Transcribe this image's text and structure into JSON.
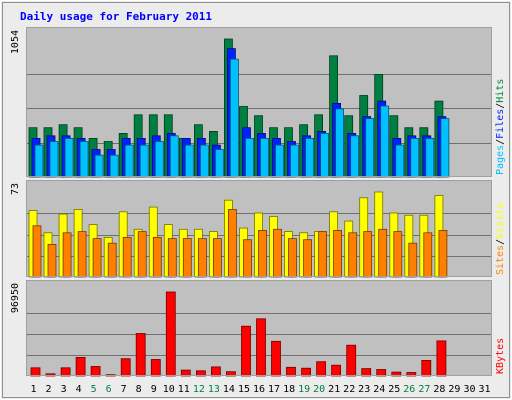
{
  "title": "Daily usage for February 2011",
  "colors": {
    "background": "#ececec",
    "panel": "#c0c0c0",
    "frame": "#a0a0a0",
    "gridline": "#707070",
    "title": "#0000ff",
    "pages": "#00c0ff",
    "files": "#0020ff",
    "hits": "#008040",
    "visits": "#ffff00",
    "sites": "#ff8000",
    "kbytes": "#ff0000",
    "weekday_label": "#000000",
    "weekend_label": "#008040"
  },
  "chart_data": [
    {
      "type": "bar",
      "name": "hits-files-pages",
      "ymax": 1054,
      "ymax_label": "1054",
      "scale": "log",
      "legend": [
        {
          "label": "Pages",
          "color": "#00c0ff"
        },
        {
          "label": "Files",
          "color": "#0020ff"
        },
        {
          "label": "Hits",
          "color": "#008040"
        }
      ],
      "series": [
        {
          "name": "Hits",
          "values": [
            11,
            11,
            13,
            11,
            6,
            5,
            8,
            22,
            22,
            22,
            6,
            13,
            9,
            1054,
            34,
            21,
            11,
            11,
            13,
            22,
            450,
            21,
            60,
            175,
            21,
            11,
            11,
            45,
            0,
            0,
            0
          ]
        },
        {
          "name": "Files",
          "values": [
            6,
            7,
            7,
            6,
            3,
            3,
            6,
            6,
            7,
            8,
            6,
            6,
            4,
            650,
            11,
            8,
            6,
            5,
            7,
            9,
            40,
            8,
            20,
            45,
            6,
            7,
            7,
            20,
            0,
            0,
            0
          ]
        },
        {
          "name": "Pages",
          "values": [
            4,
            5,
            6,
            5,
            2,
            2,
            4,
            4,
            5,
            7,
            4,
            4,
            3,
            380,
            6,
            6,
            4,
            4,
            6,
            8,
            30,
            7,
            18,
            35,
            4,
            6,
            6,
            18,
            0,
            0,
            0
          ]
        }
      ]
    },
    {
      "type": "bar",
      "name": "visits-sites",
      "ymax": 73,
      "ymax_label": "73",
      "legend": [
        {
          "label": "Sites",
          "color": "#ff8000"
        },
        {
          "label": "Visits",
          "color": "#ffff00"
        }
      ],
      "series": [
        {
          "name": "Visits",
          "values": [
            57,
            38,
            54,
            58,
            45,
            34,
            56,
            41,
            60,
            45,
            41,
            41,
            39,
            66,
            42,
            55,
            52,
            39,
            38,
            39,
            56,
            48,
            68,
            73,
            55,
            53,
            53,
            70,
            0,
            0,
            0
          ]
        },
        {
          "name": "Sites",
          "values": [
            44,
            28,
            38,
            39,
            33,
            29,
            34,
            39,
            34,
            33,
            33,
            33,
            33,
            58,
            32,
            40,
            41,
            33,
            32,
            39,
            40,
            38,
            39,
            41,
            39,
            29,
            38,
            40,
            0,
            0,
            0
          ]
        }
      ]
    },
    {
      "type": "bar",
      "name": "kbytes",
      "ymax": 96950,
      "ymax_label": "96950",
      "legend": [
        {
          "label": "KBytes",
          "color": "#ff0000"
        }
      ],
      "series": [
        {
          "name": "KBytes",
          "values": [
            9500,
            2500,
            9500,
            21500,
            11000,
            1500,
            20000,
            49000,
            19000,
            96950,
            6800,
            6000,
            10500,
            5000,
            57500,
            66000,
            40000,
            10000,
            9000,
            16500,
            12500,
            35500,
            8500,
            7500,
            4500,
            4000,
            18000,
            40500,
            0,
            0,
            0
          ]
        }
      ]
    }
  ],
  "x_labels": [
    "1",
    "2",
    "3",
    "4",
    "5",
    "6",
    "7",
    "8",
    "9",
    "10",
    "11",
    "12",
    "13",
    "14",
    "15",
    "16",
    "17",
    "18",
    "19",
    "20",
    "21",
    "22",
    "23",
    "24",
    "25",
    "26",
    "27",
    "28",
    "29",
    "30",
    "31"
  ],
  "weekend_days": [
    5,
    6,
    12,
    13,
    19,
    20,
    26,
    27
  ]
}
